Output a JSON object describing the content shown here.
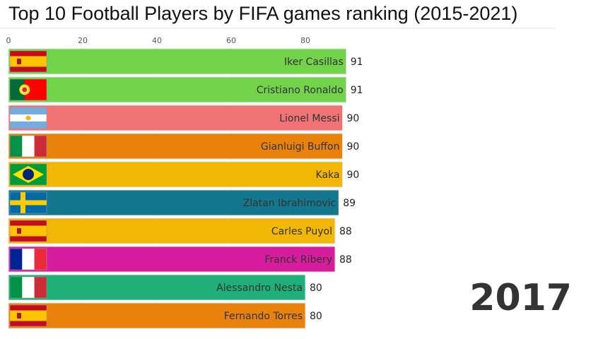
{
  "chart_data": {
    "type": "bar",
    "orientation": "horizontal",
    "title": "Top 10 Football Players by FIFA games ranking (2015-2021)",
    "year": "2017",
    "xlim": [
      0,
      91
    ],
    "xticks": [
      0,
      20,
      40,
      60,
      80
    ],
    "xtick_labels": [
      "0",
      "20",
      "40",
      "60",
      "80"
    ],
    "categories": [
      "Iker Casillas",
      "Cristiano Ronaldo",
      "Lionel Messi",
      "Gianluigi Buffon",
      "Kaka",
      "Zlatan Ibrahimovic",
      "Carles Puyol",
      "Franck Ribery",
      "Alessandro Nesta",
      "Fernando Torres"
    ],
    "values": [
      91,
      91,
      90,
      90,
      90,
      89,
      88,
      88,
      80,
      80
    ],
    "value_labels": [
      "91",
      "91",
      "90",
      "90",
      "90",
      "89",
      "88",
      "88",
      "80",
      "80"
    ],
    "flags": [
      "spain",
      "portugal",
      "argentina",
      "italy",
      "brazil",
      "sweden",
      "spain",
      "france",
      "italy",
      "spain"
    ],
    "colors": [
      "#72d34a",
      "#72d34a",
      "#f07474",
      "#e8820b",
      "#f2b705",
      "#13778e",
      "#f2b705",
      "#d61d9d",
      "#1fb079",
      "#e8820b"
    ]
  }
}
